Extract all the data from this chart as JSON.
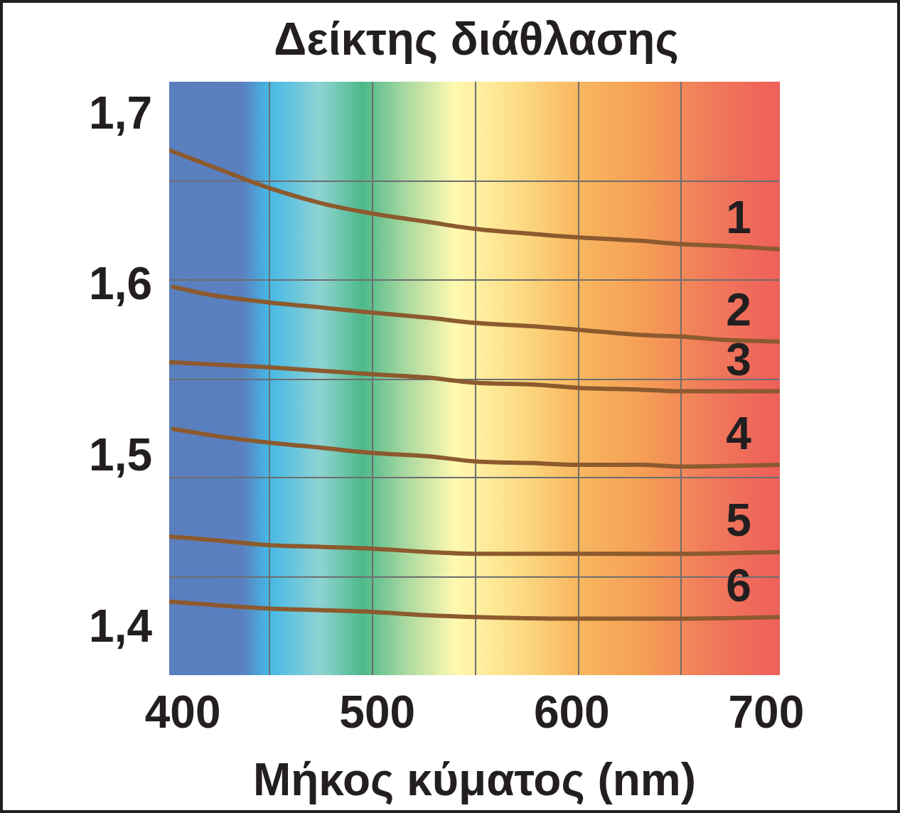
{
  "chart_data": {
    "type": "line",
    "title": "Δείκτης διάθλασης",
    "xlabel": "Μήκος κύματος (nm)",
    "x": [
      393,
      416,
      444,
      471,
      497,
      526,
      550,
      580,
      603,
      635,
      656,
      679,
      707
    ],
    "xlim": [
      393,
      707
    ],
    "xticks": [
      400,
      500,
      600,
      700
    ],
    "ylim": [
      1.373,
      1.72
    ],
    "yticks": [
      {
        "value": 1.4,
        "label": "1,4"
      },
      {
        "value": 1.5,
        "label": "1,5"
      },
      {
        "value": 1.6,
        "label": "1,6"
      },
      {
        "value": 1.7,
        "label": "1,7"
      }
    ],
    "grid": false,
    "marker": "none",
    "line_style": "solid",
    "series": [
      {
        "name": "1",
        "color": "#8c5a2e",
        "values": [
          1.68,
          1.67,
          1.658,
          1.649,
          1.643,
          1.638,
          1.634,
          1.631,
          1.629,
          1.627,
          1.625,
          1.624,
          1.622
        ]
      },
      {
        "name": "2",
        "color": "#8c5a2e",
        "x": [
          395,
          416,
          444,
          471,
          497,
          526,
          550,
          580,
          603,
          635,
          656,
          679,
          707
        ],
        "values": [
          1.6,
          1.595,
          1.591,
          1.588,
          1.585,
          1.582,
          1.579,
          1.577,
          1.575,
          1.572,
          1.571,
          1.569,
          1.568
        ]
      },
      {
        "name": "3",
        "color": "#8c5a2e",
        "x": [
          393,
          444,
          471,
          497,
          526,
          550,
          580,
          603,
          635,
          656,
          707
        ],
        "values": [
          1.556,
          1.553,
          1.551,
          1.549,
          1.547,
          1.544,
          1.543,
          1.541,
          1.54,
          1.539,
          1.539
        ]
      },
      {
        "name": "4",
        "color": "#8c5a2e",
        "x": [
          395,
          416,
          444,
          471,
          497,
          526,
          550,
          580,
          603,
          635,
          656,
          707
        ],
        "values": [
          1.517,
          1.513,
          1.509,
          1.506,
          1.503,
          1.501,
          1.498,
          1.497,
          1.496,
          1.496,
          1.495,
          1.496
        ]
      },
      {
        "name": "5",
        "color": "#8c5a2e",
        "x": [
          393,
          416,
          444,
          471,
          497,
          526,
          550,
          603,
          656,
          707
        ],
        "values": [
          1.454,
          1.452,
          1.449,
          1.448,
          1.447,
          1.445,
          1.444,
          1.444,
          1.444,
          1.445
        ]
      },
      {
        "name": "6",
        "color": "#8c5a2e",
        "x": [
          393,
          416,
          444,
          471,
          497,
          526,
          550,
          603,
          656,
          707
        ],
        "values": [
          1.416,
          1.414,
          1.412,
          1.411,
          1.41,
          1.408,
          1.407,
          1.406,
          1.406,
          1.407
        ]
      }
    ]
  }
}
